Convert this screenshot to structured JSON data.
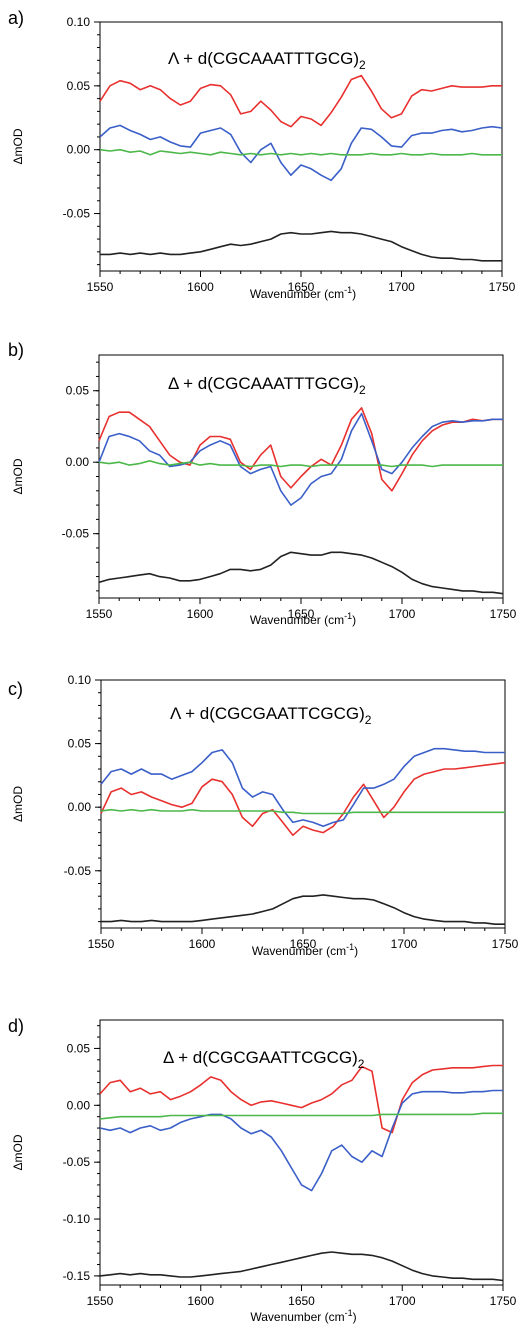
{
  "chart_data": [
    {
      "type": "line",
      "panel_label": "a)",
      "title_parts": [
        "Λ + d(CGCAAATTTGCG)",
        "2"
      ],
      "xlabel_parts": [
        "Wavenumber (cm",
        "-1",
        ")"
      ],
      "ylabel": "ΔmOD",
      "xlim": [
        1550,
        1750
      ],
      "ylim": [
        -0.095,
        0.1
      ],
      "xticks": [
        1550,
        1600,
        1650,
        1700,
        1750
      ],
      "yticks": [
        0.1,
        0.05,
        0.0,
        -0.05
      ],
      "ytick_labels": [
        "0.10",
        "0.05",
        "0.00",
        "-0.05"
      ],
      "x": [
        1550,
        1555,
        1560,
        1565,
        1570,
        1575,
        1580,
        1585,
        1590,
        1595,
        1600,
        1605,
        1610,
        1615,
        1620,
        1625,
        1630,
        1635,
        1640,
        1645,
        1650,
        1655,
        1660,
        1665,
        1670,
        1675,
        1680,
        1685,
        1690,
        1695,
        1700,
        1705,
        1710,
        1715,
        1720,
        1725,
        1730,
        1735,
        1740,
        1745,
        1750
      ],
      "series": [
        {
          "color": "#e8312f",
          "values": [
            0.038,
            0.05,
            0.054,
            0.052,
            0.047,
            0.05,
            0.047,
            0.04,
            0.035,
            0.038,
            0.048,
            0.051,
            0.05,
            0.043,
            0.028,
            0.03,
            0.038,
            0.031,
            0.022,
            0.018,
            0.026,
            0.024,
            0.019,
            0.029,
            0.041,
            0.055,
            0.058,
            0.046,
            0.032,
            0.025,
            0.028,
            0.042,
            0.047,
            0.046,
            0.048,
            0.05,
            0.049,
            0.049,
            0.049,
            0.05,
            0.05
          ]
        },
        {
          "color": "#3a5fc8",
          "values": [
            0.01,
            0.017,
            0.019,
            0.015,
            0.012,
            0.008,
            0.01,
            0.006,
            0.003,
            0.002,
            0.013,
            0.015,
            0.017,
            0.012,
            -0.002,
            -0.01,
            0.0,
            0.005,
            -0.01,
            -0.02,
            -0.012,
            -0.015,
            -0.02,
            -0.024,
            -0.015,
            0.005,
            0.017,
            0.016,
            0.01,
            0.003,
            0.002,
            0.011,
            0.013,
            0.013,
            0.015,
            0.016,
            0.014,
            0.015,
            0.017,
            0.018,
            0.017
          ]
        },
        {
          "color": "#4cb84a",
          "values": [
            0.0,
            -0.001,
            0.0,
            -0.002,
            -0.001,
            -0.004,
            -0.001,
            -0.002,
            -0.003,
            -0.002,
            -0.003,
            -0.004,
            -0.002,
            -0.003,
            -0.004,
            -0.003,
            -0.004,
            -0.003,
            -0.004,
            -0.003,
            -0.004,
            -0.003,
            -0.004,
            -0.003,
            -0.004,
            -0.004,
            -0.004,
            -0.003,
            -0.004,
            -0.004,
            -0.003,
            -0.004,
            -0.004,
            -0.003,
            -0.004,
            -0.004,
            -0.004,
            -0.003,
            -0.004,
            -0.004,
            -0.004
          ]
        },
        {
          "color": "#222222",
          "values": [
            -0.082,
            -0.082,
            -0.081,
            -0.082,
            -0.081,
            -0.082,
            -0.081,
            -0.082,
            -0.082,
            -0.081,
            -0.08,
            -0.078,
            -0.076,
            -0.074,
            -0.075,
            -0.074,
            -0.072,
            -0.07,
            -0.066,
            -0.065,
            -0.066,
            -0.066,
            -0.065,
            -0.064,
            -0.065,
            -0.065,
            -0.066,
            -0.068,
            -0.07,
            -0.072,
            -0.076,
            -0.079,
            -0.082,
            -0.084,
            -0.085,
            -0.085,
            -0.086,
            -0.086,
            -0.087,
            -0.087,
            -0.087
          ]
        }
      ]
    },
    {
      "type": "line",
      "panel_label": "b)",
      "title_parts": [
        "Δ + d(CGCAAATTTGCG)",
        "2"
      ],
      "xlabel_parts": [
        "Wavenumber (cm",
        "-1",
        ")"
      ],
      "ylabel": "ΔmOD",
      "xlim": [
        1550,
        1750
      ],
      "ylim": [
        -0.095,
        0.075
      ],
      "xticks": [
        1550,
        1600,
        1650,
        1700,
        1750
      ],
      "yticks": [
        0.05,
        0.0,
        -0.05
      ],
      "ytick_labels": [
        "0.05",
        "0.00",
        "-0.05"
      ],
      "x": [
        1550,
        1555,
        1560,
        1565,
        1570,
        1575,
        1580,
        1585,
        1590,
        1595,
        1600,
        1605,
        1610,
        1615,
        1620,
        1625,
        1630,
        1635,
        1640,
        1645,
        1650,
        1655,
        1660,
        1665,
        1670,
        1675,
        1680,
        1685,
        1690,
        1695,
        1700,
        1705,
        1710,
        1715,
        1720,
        1725,
        1730,
        1735,
        1740,
        1745,
        1750
      ],
      "series": [
        {
          "color": "#e8312f",
          "values": [
            0.015,
            0.032,
            0.035,
            0.035,
            0.03,
            0.025,
            0.015,
            0.005,
            0.0,
            -0.002,
            0.012,
            0.018,
            0.018,
            0.016,
            0.0,
            -0.005,
            0.005,
            0.012,
            -0.01,
            -0.018,
            -0.01,
            -0.003,
            0.002,
            -0.002,
            0.012,
            0.03,
            0.038,
            0.02,
            -0.012,
            -0.02,
            -0.008,
            0.005,
            0.015,
            0.022,
            0.026,
            0.028,
            0.028,
            0.03,
            0.029,
            0.03,
            0.03
          ]
        },
        {
          "color": "#3a5fc8",
          "values": [
            0.0,
            0.018,
            0.02,
            0.018,
            0.015,
            0.008,
            0.005,
            -0.003,
            -0.002,
            0.0,
            0.008,
            0.012,
            0.015,
            0.012,
            -0.003,
            -0.008,
            -0.005,
            -0.003,
            -0.02,
            -0.03,
            -0.025,
            -0.015,
            -0.01,
            -0.008,
            0.002,
            0.022,
            0.034,
            0.015,
            -0.005,
            -0.008,
            0.0,
            0.01,
            0.018,
            0.025,
            0.028,
            0.029,
            0.028,
            0.029,
            0.029,
            0.03,
            0.03
          ]
        },
        {
          "color": "#4cb84a",
          "values": [
            0.0,
            -0.001,
            0.0,
            -0.002,
            -0.001,
            0.001,
            -0.001,
            -0.002,
            -0.001,
            0.0,
            -0.002,
            -0.001,
            -0.002,
            -0.002,
            -0.002,
            -0.003,
            -0.002,
            -0.002,
            -0.003,
            -0.002,
            -0.002,
            -0.003,
            -0.002,
            -0.002,
            -0.002,
            -0.002,
            -0.002,
            -0.002,
            -0.002,
            -0.003,
            -0.002,
            -0.002,
            -0.002,
            -0.003,
            -0.002,
            -0.002,
            -0.002,
            -0.002,
            -0.002,
            -0.002,
            -0.002
          ]
        },
        {
          "color": "#222222",
          "values": [
            -0.084,
            -0.082,
            -0.081,
            -0.08,
            -0.079,
            -0.078,
            -0.08,
            -0.081,
            -0.083,
            -0.083,
            -0.082,
            -0.08,
            -0.078,
            -0.075,
            -0.075,
            -0.076,
            -0.075,
            -0.072,
            -0.066,
            -0.063,
            -0.064,
            -0.065,
            -0.065,
            -0.063,
            -0.063,
            -0.064,
            -0.065,
            -0.067,
            -0.07,
            -0.073,
            -0.077,
            -0.082,
            -0.085,
            -0.087,
            -0.088,
            -0.089,
            -0.09,
            -0.09,
            -0.091,
            -0.091,
            -0.092
          ]
        }
      ]
    },
    {
      "type": "line",
      "panel_label": "c)",
      "title_parts": [
        "Λ + d(CGCGAATTCGCG)",
        "2"
      ],
      "xlabel_parts": [
        "Wavenumber (cm",
        "-1",
        ")"
      ],
      "ylabel": "ΔmOD",
      "xlim": [
        1550,
        1750
      ],
      "ylim": [
        -0.095,
        0.1
      ],
      "xticks": [
        1550,
        1600,
        1650,
        1700,
        1750
      ],
      "yticks": [
        0.1,
        0.05,
        0.0,
        -0.05
      ],
      "ytick_labels": [
        "0.10",
        "0.05",
        "0.00",
        "-0.05"
      ],
      "x": [
        1550,
        1555,
        1560,
        1565,
        1570,
        1575,
        1580,
        1585,
        1590,
        1595,
        1600,
        1605,
        1610,
        1615,
        1620,
        1625,
        1630,
        1635,
        1640,
        1645,
        1650,
        1655,
        1660,
        1665,
        1670,
        1675,
        1680,
        1685,
        1690,
        1695,
        1700,
        1705,
        1710,
        1715,
        1720,
        1725,
        1730,
        1735,
        1740,
        1745,
        1750
      ],
      "series": [
        {
          "color": "#e8312f",
          "values": [
            -0.005,
            0.012,
            0.015,
            0.01,
            0.012,
            0.008,
            0.005,
            0.002,
            0.0,
            0.003,
            0.016,
            0.022,
            0.02,
            0.01,
            -0.008,
            -0.015,
            -0.005,
            -0.002,
            -0.012,
            -0.022,
            -0.015,
            -0.018,
            -0.02,
            -0.015,
            -0.005,
            0.008,
            0.018,
            0.005,
            -0.008,
            0.0,
            0.012,
            0.022,
            0.026,
            0.028,
            0.03,
            0.03,
            0.031,
            0.032,
            0.033,
            0.034,
            0.035
          ]
        },
        {
          "color": "#3a5fc8",
          "values": [
            0.018,
            0.028,
            0.03,
            0.026,
            0.03,
            0.026,
            0.026,
            0.022,
            0.025,
            0.028,
            0.035,
            0.043,
            0.045,
            0.035,
            0.015,
            0.008,
            0.012,
            0.01,
            -0.002,
            -0.012,
            -0.01,
            -0.012,
            -0.015,
            -0.012,
            -0.01,
            0.002,
            0.015,
            0.015,
            0.018,
            0.022,
            0.032,
            0.04,
            0.043,
            0.046,
            0.046,
            0.045,
            0.044,
            0.044,
            0.043,
            0.043,
            0.043
          ]
        },
        {
          "color": "#4cb84a",
          "values": [
            -0.003,
            -0.002,
            -0.003,
            -0.002,
            -0.003,
            -0.002,
            -0.003,
            -0.003,
            -0.003,
            -0.002,
            -0.003,
            -0.003,
            -0.003,
            -0.003,
            -0.003,
            -0.003,
            -0.003,
            -0.003,
            -0.004,
            -0.004,
            -0.005,
            -0.005,
            -0.005,
            -0.005,
            -0.005,
            -0.004,
            -0.004,
            -0.004,
            -0.004,
            -0.004,
            -0.004,
            -0.004,
            -0.004,
            -0.004,
            -0.004,
            -0.004,
            -0.004,
            -0.004,
            -0.004,
            -0.004,
            -0.004
          ]
        },
        {
          "color": "#222222",
          "values": [
            -0.09,
            -0.09,
            -0.089,
            -0.09,
            -0.09,
            -0.089,
            -0.09,
            -0.09,
            -0.09,
            -0.09,
            -0.089,
            -0.088,
            -0.087,
            -0.086,
            -0.085,
            -0.084,
            -0.082,
            -0.08,
            -0.076,
            -0.072,
            -0.07,
            -0.07,
            -0.069,
            -0.07,
            -0.071,
            -0.072,
            -0.072,
            -0.073,
            -0.076,
            -0.079,
            -0.083,
            -0.086,
            -0.088,
            -0.089,
            -0.09,
            -0.09,
            -0.09,
            -0.091,
            -0.091,
            -0.092,
            -0.092
          ]
        }
      ]
    },
    {
      "type": "line",
      "panel_label": "d)",
      "title_parts": [
        "Δ + d(CGCGAATTCGCG)",
        "2"
      ],
      "xlabel_parts": [
        "Wavenumber (cm",
        "-1",
        ")"
      ],
      "ylabel": "ΔmOD",
      "xlim": [
        1550,
        1750
      ],
      "ylim": [
        -0.158,
        0.075
      ],
      "xticks": [
        1550,
        1600,
        1650,
        1700,
        1750
      ],
      "yticks": [
        0.05,
        0.0,
        -0.05,
        -0.1,
        -0.15
      ],
      "ytick_labels": [
        "0.05",
        "0.00",
        "-0.05",
        "-0.10",
        "-0.15"
      ],
      "x": [
        1550,
        1555,
        1560,
        1565,
        1570,
        1575,
        1580,
        1585,
        1590,
        1595,
        1600,
        1605,
        1610,
        1615,
        1620,
        1625,
        1630,
        1635,
        1640,
        1645,
        1650,
        1655,
        1660,
        1665,
        1670,
        1675,
        1680,
        1685,
        1690,
        1695,
        1700,
        1705,
        1710,
        1715,
        1720,
        1725,
        1730,
        1735,
        1740,
        1745,
        1750
      ],
      "series": [
        {
          "color": "#e8312f",
          "values": [
            0.01,
            0.02,
            0.022,
            0.012,
            0.015,
            0.01,
            0.012,
            0.005,
            0.008,
            0.012,
            0.018,
            0.025,
            0.022,
            0.012,
            0.005,
            0.0,
            0.003,
            0.004,
            0.002,
            0.0,
            -0.002,
            0.002,
            0.005,
            0.01,
            0.018,
            0.022,
            0.034,
            0.03,
            -0.02,
            -0.024,
            0.005,
            0.02,
            0.027,
            0.031,
            0.032,
            0.033,
            0.033,
            0.033,
            0.034,
            0.035,
            0.035
          ]
        },
        {
          "color": "#3a5fc8",
          "values": [
            -0.02,
            -0.022,
            -0.02,
            -0.024,
            -0.02,
            -0.018,
            -0.022,
            -0.02,
            -0.015,
            -0.012,
            -0.01,
            -0.008,
            -0.008,
            -0.012,
            -0.02,
            -0.025,
            -0.022,
            -0.028,
            -0.04,
            -0.055,
            -0.07,
            -0.075,
            -0.06,
            -0.04,
            -0.035,
            -0.045,
            -0.05,
            -0.04,
            -0.045,
            -0.02,
            0.002,
            0.01,
            0.012,
            0.012,
            0.012,
            0.011,
            0.011,
            0.012,
            0.012,
            0.013,
            0.013
          ]
        },
        {
          "color": "#4cb84a",
          "values": [
            -0.012,
            -0.011,
            -0.01,
            -0.01,
            -0.01,
            -0.01,
            -0.01,
            -0.009,
            -0.009,
            -0.009,
            -0.009,
            -0.009,
            -0.009,
            -0.009,
            -0.009,
            -0.009,
            -0.009,
            -0.009,
            -0.009,
            -0.009,
            -0.009,
            -0.009,
            -0.009,
            -0.009,
            -0.009,
            -0.009,
            -0.009,
            -0.009,
            -0.008,
            -0.008,
            -0.008,
            -0.008,
            -0.008,
            -0.008,
            -0.008,
            -0.008,
            -0.008,
            -0.008,
            -0.007,
            -0.007,
            -0.007
          ]
        },
        {
          "color": "#222222",
          "values": [
            -0.15,
            -0.149,
            -0.148,
            -0.149,
            -0.148,
            -0.149,
            -0.149,
            -0.15,
            -0.151,
            -0.151,
            -0.15,
            -0.149,
            -0.148,
            -0.147,
            -0.146,
            -0.144,
            -0.142,
            -0.14,
            -0.138,
            -0.136,
            -0.134,
            -0.132,
            -0.13,
            -0.129,
            -0.13,
            -0.131,
            -0.131,
            -0.132,
            -0.134,
            -0.137,
            -0.141,
            -0.145,
            -0.148,
            -0.15,
            -0.151,
            -0.152,
            -0.152,
            -0.153,
            -0.153,
            -0.153,
            -0.154
          ]
        }
      ]
    }
  ]
}
